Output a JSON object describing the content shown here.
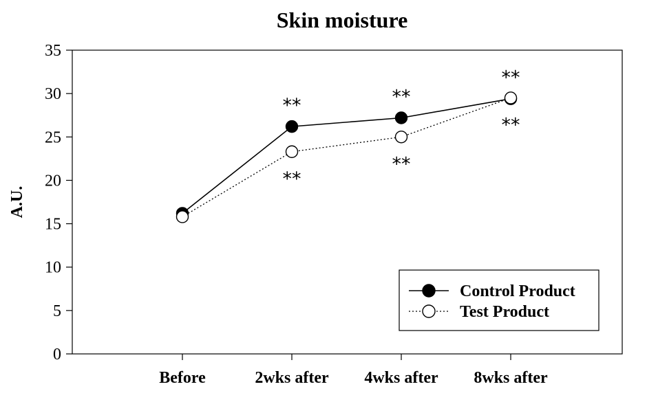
{
  "chart_data": {
    "type": "line",
    "title": "Skin moisture",
    "xlabel": "",
    "ylabel": "A.U.",
    "categories": [
      "Before",
      "2wks after",
      "4wks after",
      "8wks after"
    ],
    "ylim": [
      0,
      35
    ],
    "yticks": [
      0,
      5,
      10,
      15,
      20,
      25,
      30,
      35
    ],
    "grid": false,
    "legend_position": "bottom-right",
    "series": [
      {
        "name": "Control Product",
        "values": [
          16.2,
          26.2,
          27.2,
          29.4
        ],
        "marker": "filled-circle",
        "line": "solid",
        "color": "#000000",
        "annotations": [
          "",
          "**",
          "**",
          "**"
        ]
      },
      {
        "name": "Test Product",
        "values": [
          15.8,
          23.3,
          25.0,
          29.5
        ],
        "marker": "open-circle",
        "line": "dotted",
        "color": "#000000",
        "annotations": [
          "",
          "**",
          "**",
          "**"
        ]
      }
    ]
  }
}
